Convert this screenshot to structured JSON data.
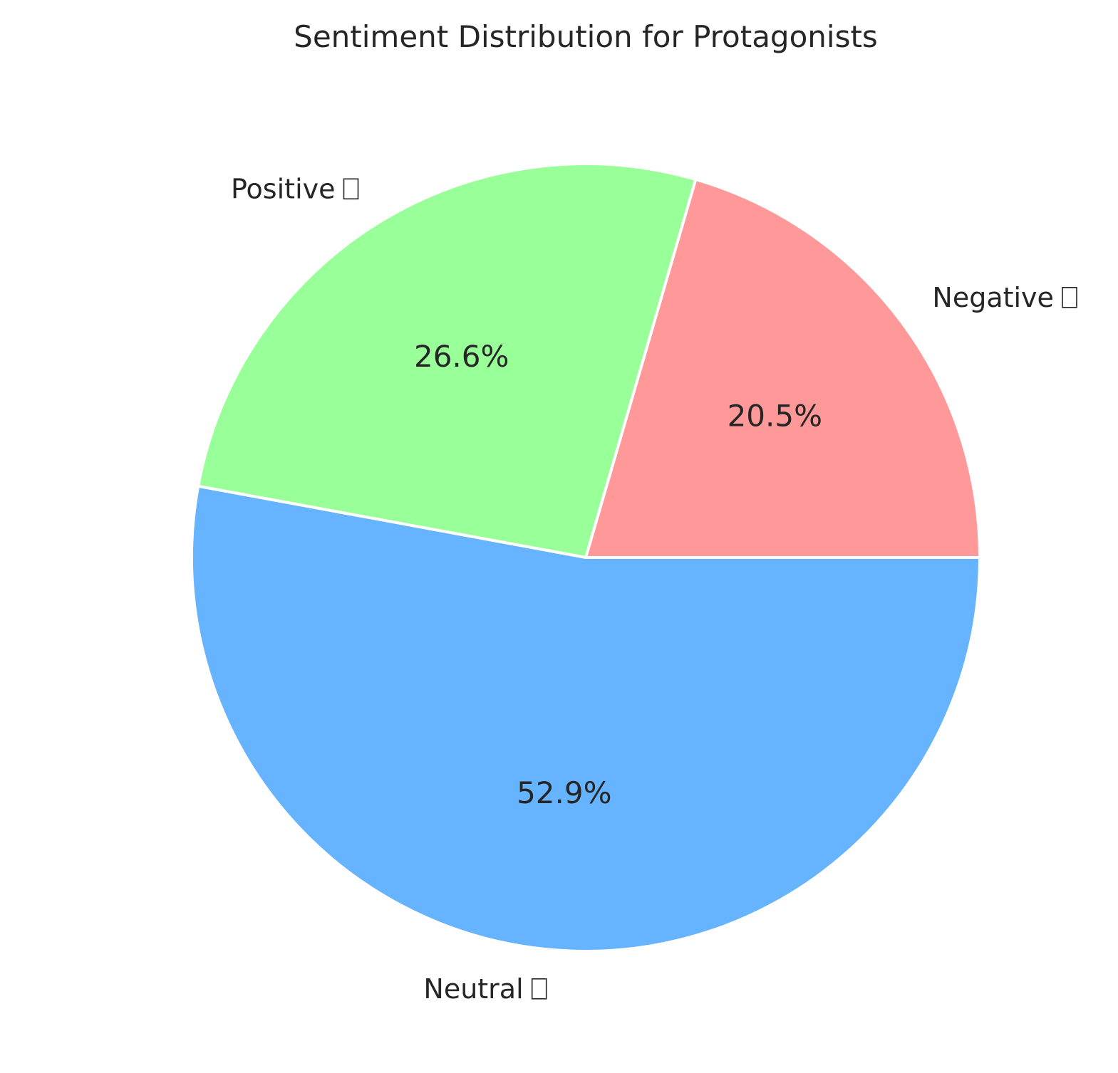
{
  "chart_data": {
    "type": "pie",
    "title": "Sentiment Distribution for Protagonists",
    "slices": [
      {
        "label": "Negative",
        "value": 20.5,
        "pct_label": "20.5%",
        "color": "#ff9999"
      },
      {
        "label": "Positive",
        "value": 26.6,
        "pct_label": "26.6%",
        "color": "#99ff99"
      },
      {
        "label": "Neutral",
        "value": 52.9,
        "pct_label": "52.9%",
        "color": "#66b3ff"
      }
    ],
    "start_angle_deg": 0,
    "direction": "counterclockwise-from-east",
    "label_suffix_glyph": "missing-glyph-box",
    "legend": "none"
  }
}
